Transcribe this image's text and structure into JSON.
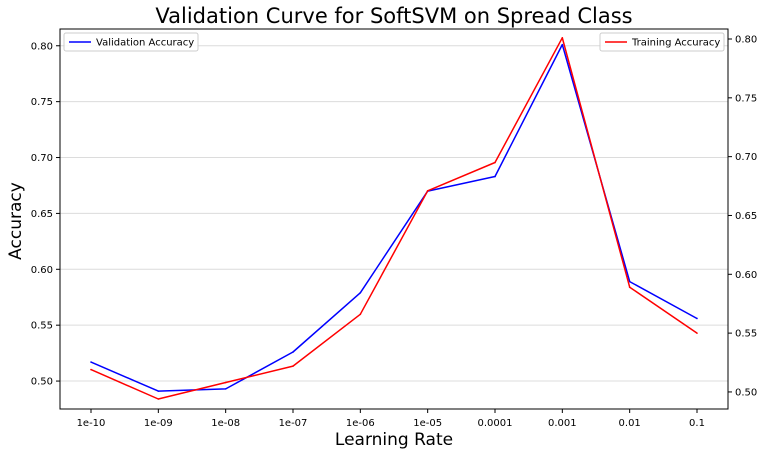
{
  "chart_data": {
    "type": "line",
    "title": "Validation Curve for SoftSVM on Spread Class",
    "xlabel": "Learning Rate",
    "ylabel": "Accuracy",
    "categories": [
      "1e-10",
      "1e-09",
      "1e-08",
      "1e-07",
      "1e-06",
      "1e-05",
      "0.0001",
      "0.001",
      "0.01",
      "0.1"
    ],
    "left_axis": {
      "ylim": [
        0.475,
        0.815
      ],
      "ticks": [
        "0.50",
        "0.55",
        "0.60",
        "0.65",
        "0.70",
        "0.75",
        "0.80"
      ],
      "tick_values": [
        0.5,
        0.55,
        0.6,
        0.65,
        0.7,
        0.75,
        0.8
      ]
    },
    "right_axis": {
      "ylim": [
        0.4855,
        0.8085
      ],
      "ticks": [
        "0.50",
        "0.55",
        "0.60",
        "0.65",
        "0.70",
        "0.75",
        "0.80"
      ],
      "tick_values": [
        0.5,
        0.55,
        0.6,
        0.65,
        0.7,
        0.75,
        0.8
      ]
    },
    "grid": true,
    "series": [
      {
        "name": "Validation Accuracy",
        "axis": "left",
        "color": "#0000ff",
        "values": [
          0.517,
          0.491,
          0.493,
          0.526,
          0.579,
          0.67,
          0.683,
          0.801,
          0.589,
          0.556
        ]
      },
      {
        "name": "Training Accuracy",
        "axis": "right",
        "color": "#ff0000",
        "values": [
          0.519,
          0.494,
          0.508,
          0.522,
          0.566,
          0.671,
          0.695,
          0.801,
          0.589,
          0.55
        ]
      }
    ],
    "legends": [
      {
        "placement": "top-left",
        "series": "Validation Accuracy"
      },
      {
        "placement": "top-right",
        "series": "Training Accuracy"
      }
    ]
  }
}
